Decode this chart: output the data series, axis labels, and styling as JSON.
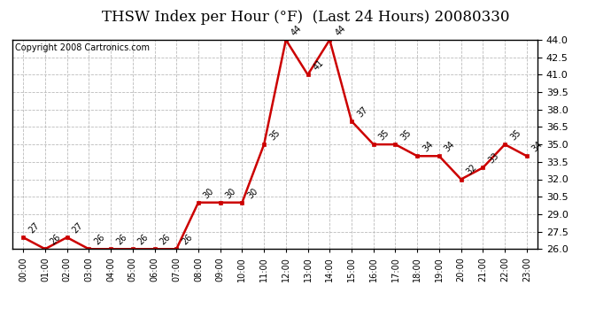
{
  "title": "THSW Index per Hour (°F)  (Last 24 Hours) 20080330",
  "copyright": "Copyright 2008 Cartronics.com",
  "hours": [
    "00:00",
    "01:00",
    "02:00",
    "03:00",
    "04:00",
    "05:00",
    "06:00",
    "07:00",
    "08:00",
    "09:00",
    "10:00",
    "11:00",
    "12:00",
    "13:00",
    "14:00",
    "15:00",
    "16:00",
    "17:00",
    "18:00",
    "19:00",
    "20:00",
    "21:00",
    "22:00",
    "23:00"
  ],
  "values": [
    27,
    26,
    27,
    26,
    26,
    26,
    26,
    26,
    30,
    30,
    30,
    35,
    44,
    41,
    44,
    37,
    35,
    35,
    34,
    34,
    32,
    33,
    35,
    34
  ],
  "line_color": "#cc0000",
  "marker_color": "#cc0000",
  "bg_color": "#ffffff",
  "grid_color": "#bbbbbb",
  "ylim_min": 26.0,
  "ylim_max": 44.0,
  "ytick_interval": 1.5,
  "title_fontsize": 12,
  "copyright_fontsize": 7,
  "label_fontsize": 7,
  "tick_fontsize": 8,
  "xtick_fontsize": 7
}
